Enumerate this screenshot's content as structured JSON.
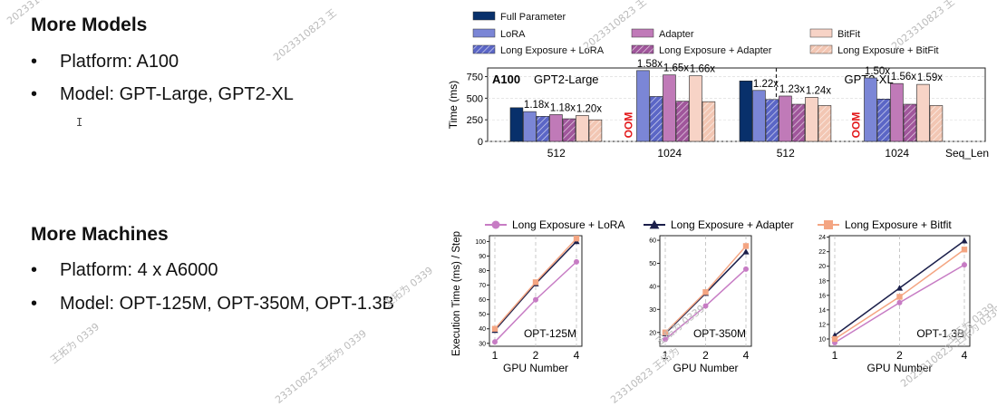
{
  "slide": {
    "models_heading": "More Models",
    "models_platform": "Platform: A100",
    "models_model": "Model: GPT-Large, GPT2-XL",
    "machines_heading": "More Machines",
    "machines_platform": "Platform: 4 x A6000",
    "machines_model": "Model: OPT-125M, OPT-350M, OPT-1.3B",
    "bullet_glyph": "•",
    "cursor_glyph": "I",
    "watermarks": [
      "2023310823 王",
      "2023310823 王",
      "2023310823 王",
      "2023310823 王",
      "王拓为 0339",
      "王拓为 0339",
      "23310823 王拓为 0339",
      "王拓为 0339",
      "23310823 王拓为",
      "2023310823 王拓为 0339",
      "王拓为 0339"
    ]
  },
  "chart_data": [
    {
      "type": "bar",
      "ylabel": "Time (ms)",
      "ylim": [
        0,
        850
      ],
      "yticks": [
        0,
        250,
        500,
        750
      ],
      "seq_len_label": "Seq_Len",
      "legend": [
        {
          "name": "Full Parameter",
          "color": "#08306b",
          "hatch": false
        },
        {
          "name": "LoRA",
          "color": "#7b86d6",
          "hatch": false
        },
        {
          "name": "Long Exposure + LoRA",
          "color": "#5b66c6",
          "hatch": true
        },
        {
          "name": "Adapter",
          "color": "#c07ab8",
          "hatch": false
        },
        {
          "name": "Long Exposure + Adapter",
          "color": "#a0569b",
          "hatch": true
        },
        {
          "name": "BitFit",
          "color": "#f7d3c6",
          "hatch": false
        },
        {
          "name": "Long Exposure + BitFit",
          "color": "#f2c6b3",
          "hatch": true
        }
      ],
      "panels": [
        {
          "tag": "A100",
          "model": "GPT2-Large",
          "groups": [
            {
              "seq_len": "512",
              "full": 390,
              "lora": 345,
              "le_lora": 290,
              "adapter": 310,
              "le_adapter": 262,
              "bitfit": 300,
              "le_bitfit": 250,
              "labels": [
                "1.18x",
                "1.18x",
                "1.20x"
              ]
            },
            {
              "seq_len": "1024",
              "full": null,
              "full_text": "OOM",
              "lora": 820,
              "le_lora": 520,
              "adapter": 770,
              "le_adapter": 465,
              "bitfit": 760,
              "le_bitfit": 460,
              "labels": [
                "1.58x",
                "1.65x",
                "1.66x"
              ]
            }
          ]
        },
        {
          "tag": "",
          "model": "GPT2-XL",
          "groups": [
            {
              "seq_len": "512",
              "full": 700,
              "lora": 590,
              "le_lora": 485,
              "adapter": 525,
              "le_adapter": 430,
              "bitfit": 510,
              "le_bitfit": 415,
              "labels": [
                "1.22x",
                "1.23x",
                "1.24x"
              ]
            },
            {
              "seq_len": "1024",
              "full": null,
              "full_text": "OOM",
              "lora": 735,
              "le_lora": 490,
              "adapter": 670,
              "le_adapter": 430,
              "bitfit": 660,
              "le_bitfit": 415,
              "labels": [
                "1.50x",
                "1.56x",
                "1.59x"
              ]
            }
          ]
        }
      ]
    },
    {
      "type": "line",
      "ylabel": "Execution Time (ms) / Step",
      "xlabel": "GPU Number",
      "x": [
        1,
        2,
        4
      ],
      "legend_series": [
        {
          "name": "Long Exposure + LoRA",
          "color": "#c77cc4",
          "marker": "circle"
        },
        {
          "name": "Long Exposure + Adapter",
          "color": "#1b1f4a",
          "marker": "triangle"
        },
        {
          "name": "Long Exposure + Bitfit",
          "color": "#f4a582",
          "marker": "square"
        }
      ],
      "panels": [
        {
          "model": "OPT-125M",
          "ylim": [
            28,
            104
          ],
          "yticks": [
            30,
            40,
            50,
            60,
            70,
            80,
            90,
            100
          ],
          "series": {
            "lora": [
              31,
              60,
              86
            ],
            "adapter": [
              39,
              71,
              100
            ],
            "bitfit": [
              40,
              72,
              102
            ]
          }
        },
        {
          "model": "OPT-350M",
          "ylim": [
            14,
            62
          ],
          "yticks": [
            20,
            30,
            40,
            50,
            60
          ],
          "series": {
            "lora": [
              17,
              31.5,
              47.5
            ],
            "adapter": [
              19.5,
              37,
              55
            ],
            "bitfit": [
              20,
              37.5,
              57.5
            ]
          }
        },
        {
          "model": "OPT-1.3B",
          "ylim": [
            9,
            24.2
          ],
          "yticks": [
            10,
            12,
            14,
            16,
            18,
            20,
            22,
            24
          ],
          "series": {
            "lora": [
              9.5,
              15,
              20.2
            ],
            "adapter": [
              10.5,
              17,
              23.5
            ],
            "bitfit": [
              10,
              15.8,
              22.3
            ]
          }
        }
      ]
    }
  ]
}
